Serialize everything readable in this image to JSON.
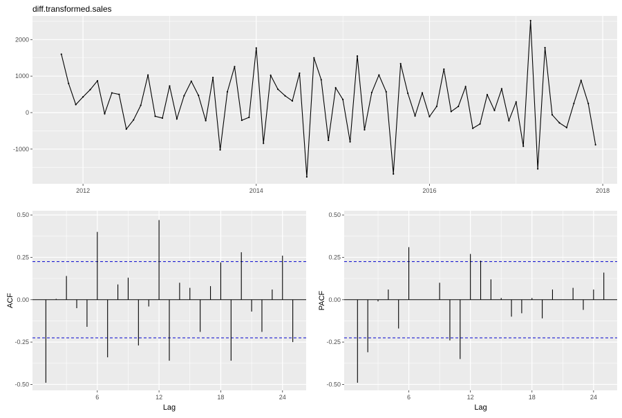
{
  "chart_data": [
    {
      "type": "line",
      "title": "diff.transformed.sales",
      "xlabel": "",
      "ylabel": "",
      "x_start": "2011-10",
      "x_step": "month",
      "x": [
        "2011-10",
        "2011-11",
        "2011-12",
        "2012-01",
        "2012-02",
        "2012-03",
        "2012-04",
        "2012-05",
        "2012-06",
        "2012-07",
        "2012-08",
        "2012-09",
        "2012-10",
        "2012-11",
        "2012-12",
        "2013-01",
        "2013-02",
        "2013-03",
        "2013-04",
        "2013-05",
        "2013-06",
        "2013-07",
        "2013-08",
        "2013-09",
        "2013-10",
        "2013-11",
        "2013-12",
        "2014-01",
        "2014-02",
        "2014-03",
        "2014-04",
        "2014-05",
        "2014-06",
        "2014-07",
        "2014-08",
        "2014-09",
        "2014-10",
        "2014-11",
        "2014-12",
        "2015-01",
        "2015-02",
        "2015-03",
        "2015-04",
        "2015-05",
        "2015-06",
        "2015-07",
        "2015-08",
        "2015-09",
        "2015-10",
        "2015-11",
        "2015-12",
        "2016-01",
        "2016-02",
        "2016-03",
        "2016-04",
        "2016-05",
        "2016-06",
        "2016-07",
        "2016-08",
        "2016-09",
        "2016-10",
        "2016-11",
        "2016-12",
        "2017-01",
        "2017-02",
        "2017-03",
        "2017-04",
        "2017-05",
        "2017-06",
        "2017-07",
        "2017-08",
        "2017-09",
        "2017-10",
        "2017-11",
        "2017-12"
      ],
      "values": [
        1600,
        800,
        220,
        430,
        630,
        870,
        -30,
        540,
        500,
        -450,
        -200,
        200,
        1030,
        -100,
        -150,
        730,
        -170,
        460,
        860,
        470,
        -220,
        960,
        -1020,
        570,
        1260,
        -210,
        -130,
        1770,
        -840,
        1020,
        640,
        460,
        320,
        1080,
        -1760,
        1500,
        900,
        -760,
        680,
        360,
        -800,
        1550,
        -470,
        550,
        1030,
        570,
        -1680,
        1340,
        530,
        -90,
        540,
        -110,
        170,
        1190,
        30,
        170,
        710,
        -430,
        -310,
        490,
        60,
        650,
        -220,
        290,
        -920,
        2520,
        -1540,
        1780,
        -60,
        -280,
        -410,
        250,
        880,
        250,
        -880
      ],
      "x_ticks": [
        "2012",
        "2014",
        "2016",
        "2018"
      ],
      "y_ticks": [
        "-1000",
        "0",
        "1000",
        "2000"
      ],
      "xlim": [
        "2011-06",
        "2018-03"
      ],
      "ylim": [
        -1950,
        2650
      ],
      "grid": true,
      "background": "#ebebeb",
      "line_color": "#000000"
    },
    {
      "type": "bar",
      "xlabel": "Lag",
      "ylabel": "ACF",
      "lags": [
        1,
        2,
        3,
        4,
        5,
        6,
        7,
        8,
        9,
        10,
        11,
        12,
        13,
        14,
        15,
        16,
        17,
        18,
        19,
        20,
        21,
        22,
        23,
        24,
        25
      ],
      "values": [
        -0.49,
        0.005,
        0.14,
        -0.05,
        -0.16,
        0.4,
        -0.34,
        0.09,
        0.13,
        -0.27,
        -0.04,
        0.47,
        -0.36,
        0.1,
        0.07,
        -0.19,
        0.08,
        0.22,
        -0.36,
        0.28,
        -0.07,
        -0.19,
        0.06,
        0.26,
        -0.25
      ],
      "conf_limit": 0.225,
      "x_ticks": [
        "6",
        "12",
        "18",
        "24"
      ],
      "y_ticks": [
        "-0.50",
        "-0.25",
        "0.00",
        "0.25",
        "0.50"
      ],
      "xlim": [
        -0.3,
        26.3
      ],
      "ylim": [
        -0.535,
        0.525
      ],
      "grid": true,
      "background": "#ebebeb",
      "bound_color": "#0000cc"
    },
    {
      "type": "bar",
      "xlabel": "Lag",
      "ylabel": "PACF",
      "lags": [
        1,
        2,
        3,
        4,
        5,
        6,
        7,
        8,
        9,
        10,
        11,
        12,
        13,
        14,
        15,
        16,
        17,
        18,
        19,
        20,
        21,
        22,
        23,
        24,
        25
      ],
      "values": [
        -0.49,
        -0.31,
        -0.01,
        0.06,
        -0.17,
        0.31,
        0.0,
        0.0,
        0.1,
        -0.24,
        -0.35,
        0.27,
        0.23,
        0.12,
        0.01,
        -0.1,
        -0.08,
        0.01,
        -0.11,
        0.06,
        0.0,
        0.07,
        -0.06,
        0.06,
        0.16
      ],
      "conf_limit": 0.225,
      "x_ticks": [
        "6",
        "12",
        "18",
        "24"
      ],
      "y_ticks": [
        "-0.50",
        "-0.25",
        "0.00",
        "0.25",
        "0.50"
      ],
      "xlim": [
        -0.3,
        26.3
      ],
      "ylim": [
        -0.535,
        0.525
      ],
      "grid": true,
      "background": "#ebebeb",
      "bound_color": "#0000cc"
    }
  ]
}
